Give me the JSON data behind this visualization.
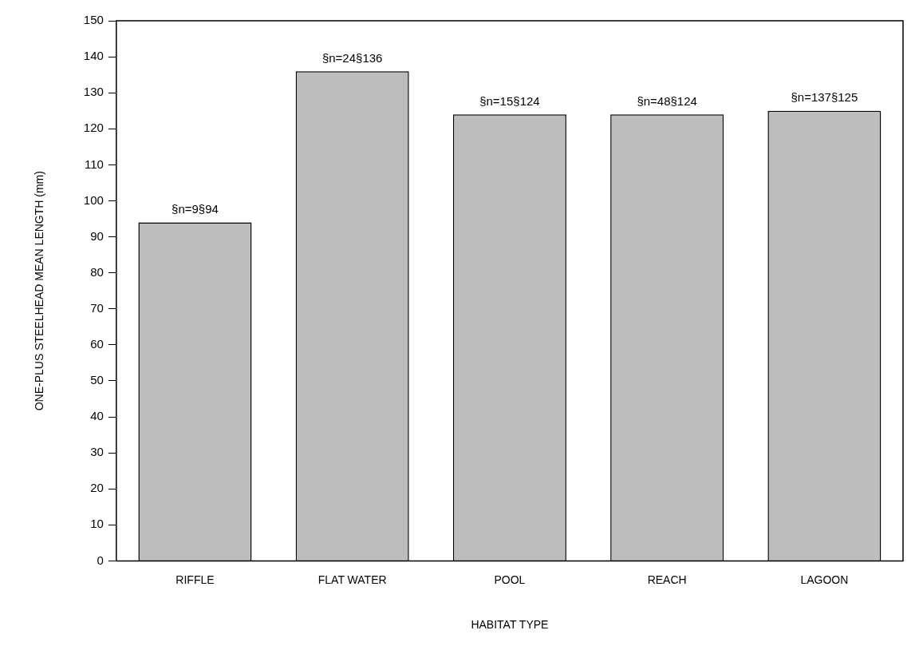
{
  "chart_data": {
    "type": "bar",
    "xlabel": "HABITAT TYPE",
    "ylabel": "ONE-PLUS STEELHEAD MEAN LENGTH (mm)",
    "categories": [
      "RIFFLE",
      "FLAT WATER",
      "POOL",
      "REACH",
      "LAGOON"
    ],
    "values": [
      94,
      136,
      124,
      124,
      125
    ],
    "value_labels": [
      "§n=9§94",
      "§n=24§136",
      "§n=15§124",
      "§n=48§124",
      "§n=137§125"
    ],
    "color": "#bdbdbd",
    "ylim": [
      0,
      150
    ],
    "yticks": [
      0,
      10,
      20,
      30,
      40,
      50,
      60,
      70,
      80,
      90,
      100,
      110,
      120,
      130,
      140,
      150
    ],
    "grid": false,
    "legend": false
  }
}
